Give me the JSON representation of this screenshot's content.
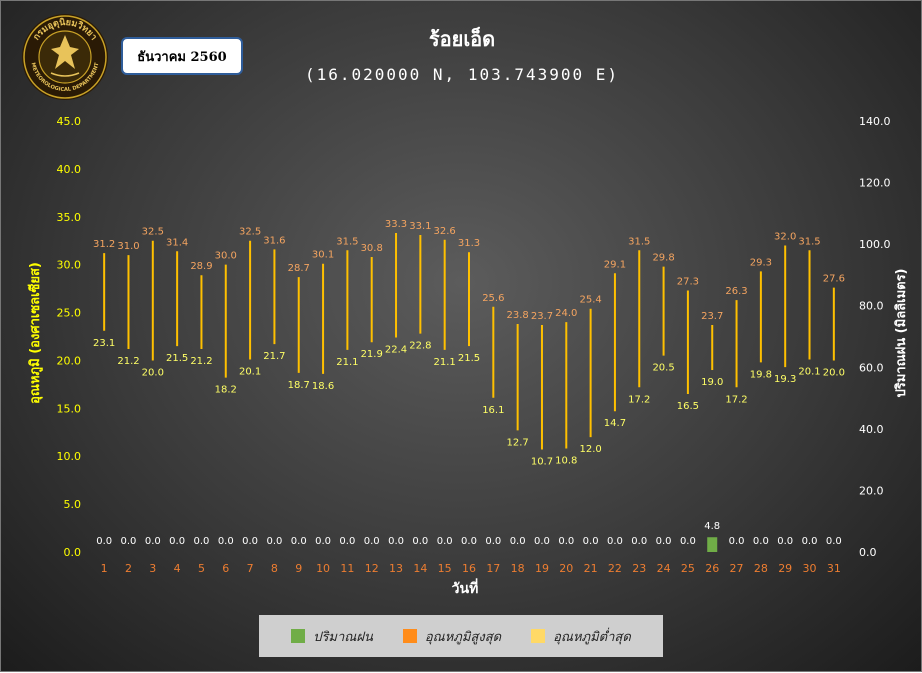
{
  "header": {
    "title": "ร้อยเอ็ด",
    "subtitle": "(16.020000 N, 103.743900 E)",
    "month_label": "ธันวาคม 2560"
  },
  "logo": {
    "text_top": "กรมอุตุนิยมวิทยา",
    "text_bottom": "METEOROLOGICAL DEPARTMENT",
    "colors": {
      "ring": "#2a1a05",
      "gold": "#c9a227",
      "center": "#e8c35a"
    }
  },
  "legend": {
    "rain_label": "ปริมาณฝน",
    "max_label": "อุณหภูมิสูงสุด",
    "min_label": "อุณหภูมิต่ำสุด"
  },
  "colors": {
    "rain": "#70ad47",
    "max_legend": "#ff8c1a",
    "min_legend": "#ffd966",
    "range_line": "#ffc000",
    "max_label": "#f4a460",
    "min_label": "#ffff66",
    "rain_label": "#ffffff",
    "left_axis": "#ffff00",
    "right_axis": "#ffffff",
    "x_tick": "#ed7d31"
  },
  "chart_data": {
    "type": "bar",
    "xlabel": "วันที่",
    "ylabel_left": "อุณหภูมิ (องศาเซลเซียส)",
    "ylabel_right": "ปริมาณฝน (มิลลิเมตร)",
    "ylim_left": [
      0,
      45
    ],
    "yticks_left": [
      "0.0",
      "5.0",
      "10.0",
      "15.0",
      "20.0",
      "25.0",
      "30.0",
      "35.0",
      "40.0",
      "45.0"
    ],
    "ylim_right": [
      0,
      140
    ],
    "yticks_right": [
      "0.0",
      "20.0",
      "40.0",
      "60.0",
      "80.0",
      "100.0",
      "120.0",
      "140.0"
    ],
    "grid": false,
    "legend_position": "bottom",
    "categories": [
      "1",
      "2",
      "3",
      "4",
      "5",
      "6",
      "7",
      "8",
      "9",
      "10",
      "11",
      "12",
      "13",
      "14",
      "15",
      "16",
      "17",
      "18",
      "19",
      "20",
      "21",
      "22",
      "23",
      "24",
      "25",
      "26",
      "27",
      "28",
      "29",
      "30",
      "31"
    ],
    "series": [
      {
        "name": "อุณหภูมิสูงสุด",
        "axis": "left",
        "values": [
          "31.2",
          "31.0",
          "32.5",
          "31.4",
          "28.9",
          "30.0",
          "32.5",
          "31.6",
          "28.7",
          "30.1",
          "31.5",
          "30.8",
          "33.3",
          "33.1",
          "32.6",
          "31.3",
          "25.6",
          "23.8",
          "23.7",
          "24.0",
          "25.4",
          "29.1",
          "31.5",
          "29.8",
          "27.3",
          "23.7",
          "26.3",
          "29.3",
          "32.0",
          "31.5",
          "27.6"
        ]
      },
      {
        "name": "อุณหภูมิต่ำสุด",
        "axis": "left",
        "values": [
          "23.1",
          "21.2",
          "20.0",
          "21.5",
          "21.2",
          "18.2",
          "20.1",
          "21.7",
          "18.7",
          "18.6",
          "21.1",
          "21.9",
          "22.4",
          "22.8",
          "21.1",
          "21.5",
          "16.1",
          "12.7",
          "10.7",
          "10.8",
          "12.0",
          "14.7",
          "17.2",
          "20.5",
          "16.5",
          "19.0",
          "17.2",
          "19.8",
          "19.3",
          "20.1",
          "20.0"
        ]
      },
      {
        "name": "ปริมาณฝน",
        "axis": "right",
        "values": [
          "0.0",
          "0.0",
          "0.0",
          "0.0",
          "0.0",
          "0.0",
          "0.0",
          "0.0",
          "0.0",
          "0.0",
          "0.0",
          "0.0",
          "0.0",
          "0.0",
          "0.0",
          "0.0",
          "0.0",
          "0.0",
          "0.0",
          "0.0",
          "0.0",
          "0.0",
          "0.0",
          "0.0",
          "0.0",
          "4.8",
          "0.0",
          "0.0",
          "0.0",
          "0.0",
          "0.0"
        ]
      }
    ]
  }
}
